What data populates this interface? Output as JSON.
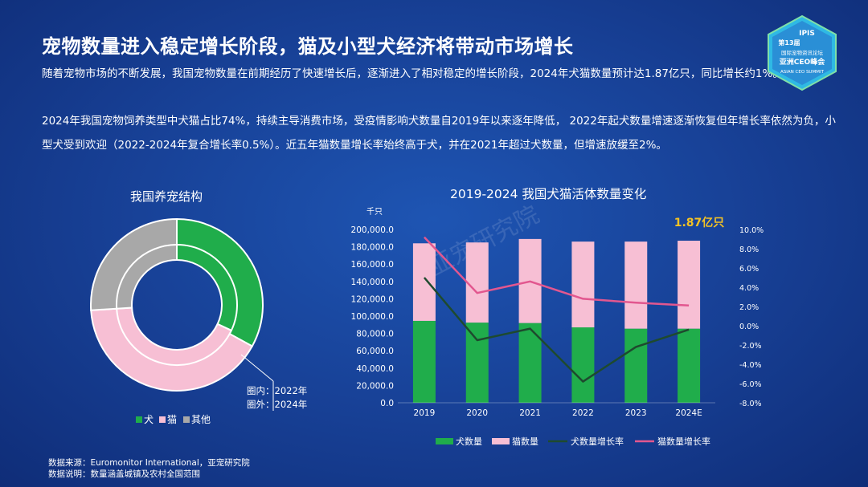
{
  "header": {
    "title": "宠物数量进入稳定增长阶段，猫及小型犬经济将带动市场增长",
    "para1": "随着宠物市场的不断发展，我国宠物数量在前期经历了快速增长后，逐渐进入了相对稳定的增长阶段，2024年犬猫数量预计达1.87亿只，同比增长约1%。",
    "para2": "2024年我国宠物饲养类型中犬猫占比74%，持续主导消费市场，受疫情影响犬数量自2019年以来逐年降低， 2022年起犬数量增速逐渐恢复但年增长率依然为负，小型犬受到欢迎（2022-2024年复合增长率0.5%）。近五年猫数量增长率始终高于犬，并在2021年超过犬数量，但增速放缓至2%。"
  },
  "logo": {
    "line1": "IPIS",
    "line2": "第13届",
    "line3": "国际宠物资讯论坛",
    "line4": "亚洲CEO峰会",
    "line5": "ASIAN CEO SUMMIT"
  },
  "colors": {
    "dog": "#20ad4b",
    "cat": "#f7bfd4",
    "other": "#a8a8a8",
    "dog_rate": "#1e4a2e",
    "cat_rate": "#e2578f",
    "highlight": "#f5c323"
  },
  "footer": {
    "source": "数据来源：Euromonitor International，亚宠研究院",
    "note": "数据说明：数量涵盖城镇及农村全国范围"
  },
  "chart_data": [
    {
      "type": "pie",
      "subtype": "double-donut",
      "title": "我国养宠结构",
      "categories": [
        "犬",
        "猫",
        "其他"
      ],
      "series": [
        {
          "name": "2022年",
          "ring": "inner",
          "values": [
            32,
            42,
            26
          ]
        },
        {
          "name": "2024年",
          "ring": "outer",
          "values": [
            33,
            41,
            26
          ]
        }
      ],
      "annotation_line1": "圈内：2022年",
      "annotation_line2": "圈外：2024年",
      "legend_position": "bottom"
    },
    {
      "type": "bar",
      "subtype": "stacked-bar-with-lines",
      "title": "2019-2024 我国犬猫活体数量变化",
      "categories": [
        "2019",
        "2020",
        "2021",
        "2022",
        "2023",
        "2024E"
      ],
      "ylabel": "千只",
      "ylim": [
        0,
        200000
      ],
      "yticks": [
        "200,000.0",
        "180,000.0",
        "160,000.0",
        "140,000.0",
        "120,000.0",
        "100,000.0",
        "80,000.0",
        "60,000.0",
        "40,000.0",
        "20,000.0",
        "0.0"
      ],
      "y2lim": [
        -8,
        10
      ],
      "y2ticks": [
        "10.0%",
        "8.0%",
        "6.0%",
        "4.0%",
        "2.0%",
        "0.0%",
        "-2.0%",
        "-4.0%",
        "-6.0%",
        "-8.0%"
      ],
      "series": [
        {
          "name": "犬数量",
          "type": "bar",
          "values": [
            94500,
            92500,
            92000,
            87000,
            85500,
            85500
          ]
        },
        {
          "name": "猫数量",
          "type": "bar",
          "values": [
            89500,
            92500,
            97000,
            99000,
            100500,
            101500
          ]
        },
        {
          "name": "犬数量增长率",
          "type": "line",
          "axis": "right",
          "values": [
            5.0,
            -1.5,
            -0.3,
            -5.8,
            -2.2,
            -0.4
          ]
        },
        {
          "name": "猫数量增长率",
          "type": "line",
          "axis": "right",
          "values": [
            9.2,
            3.4,
            4.6,
            2.8,
            2.4,
            2.1
          ]
        }
      ],
      "annotation": "1.87亿只",
      "watermark": "亚宠研究院",
      "legend_position": "bottom",
      "grid": false
    }
  ]
}
